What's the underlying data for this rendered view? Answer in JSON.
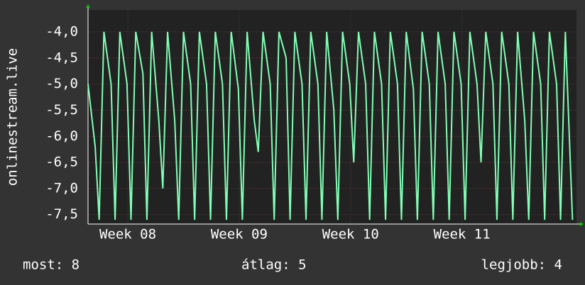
{
  "chart_data": {
    "type": "line",
    "ylabel": "onlinestream.live",
    "x": [
      0,
      0.45,
      0.7,
      1,
      1.45,
      1.7,
      2,
      2.45,
      2.7,
      3,
      3.45,
      3.7,
      4,
      4.45,
      4.7,
      5,
      5.45,
      5.7,
      6,
      6.45,
      6.7,
      7,
      7.45,
      7.7,
      8,
      8.45,
      8.7,
      9,
      9.45,
      9.7,
      10,
      10.45,
      10.7,
      11,
      11.45,
      11.7,
      12,
      12.45,
      12.7,
      13,
      13.45,
      13.7,
      14,
      14.45,
      14.7,
      15,
      15.45,
      15.7,
      16,
      16.45,
      16.7,
      17,
      17.45,
      17.7,
      18,
      18.45,
      18.7,
      19,
      19.45,
      19.7,
      20,
      20.45,
      20.7,
      21,
      21.45,
      21.7,
      22,
      22.45,
      22.7,
      23,
      23.45,
      23.7,
      24,
      24.45,
      24.7,
      25,
      25.45,
      25.7,
      26,
      26.45,
      26.7,
      27,
      27.45,
      27.7,
      28,
      28.45,
      28.7,
      29,
      29.45,
      29.7,
      30,
      30.45
    ],
    "series": [
      {
        "name": "onlinestream.live",
        "color": "#80ffb4",
        "values": [
          -5.0,
          -6.2,
          -7.6,
          -4.0,
          -5.0,
          -7.6,
          -4.0,
          -5.0,
          -7.6,
          -4.0,
          -4.8,
          -7.6,
          -4.0,
          -5.7,
          -7.0,
          -4.0,
          -5.7,
          -7.6,
          -4.0,
          -5.0,
          -7.6,
          -4.0,
          -5.0,
          -7.6,
          -4.0,
          -5.0,
          -7.6,
          -4.0,
          -5.1,
          -7.6,
          -4.0,
          -5.7,
          -6.3,
          -4.0,
          -5.0,
          -7.6,
          -4.0,
          -4.5,
          -7.6,
          -4.0,
          -5.0,
          -7.6,
          -4.0,
          -5.0,
          -7.6,
          -4.0,
          -5.5,
          -7.6,
          -4.0,
          -5.0,
          -6.5,
          -4.0,
          -5.0,
          -7.6,
          -4.0,
          -5.0,
          -7.6,
          -4.0,
          -5.0,
          -7.6,
          -4.0,
          -5.1,
          -7.6,
          -4.0,
          -5.0,
          -7.6,
          -4.0,
          -5.0,
          -7.6,
          -4.0,
          -5.0,
          -7.6,
          -4.0,
          -5.0,
          -6.5,
          -4.0,
          -5.0,
          -7.6,
          -4.0,
          -5.0,
          -7.6,
          -4.0,
          -5.7,
          -7.6,
          -4.0,
          -5.0,
          -7.6,
          -4.0,
          -5.0,
          -7.6,
          -4.0,
          -7.6
        ]
      }
    ],
    "xlim": [
      0,
      30.7
    ],
    "xticks": [
      {
        "value": 2.5,
        "label": "Week 08"
      },
      {
        "value": 9.5,
        "label": "Week 09"
      },
      {
        "value": 16.5,
        "label": "Week 10"
      },
      {
        "value": 23.5,
        "label": "Week 11"
      }
    ],
    "ylim": [
      -7.68,
      -3.58
    ],
    "yticks": [
      {
        "value": -4.0,
        "label": "-4,0"
      },
      {
        "value": -4.5,
        "label": "-4,5"
      },
      {
        "value": -5.0,
        "label": "-5,0"
      },
      {
        "value": -5.5,
        "label": "-5,5"
      },
      {
        "value": -6.0,
        "label": "-6,0"
      },
      {
        "value": -6.5,
        "label": "-6,5"
      },
      {
        "value": -7.0,
        "label": "-7,0"
      },
      {
        "value": -7.5,
        "label": "-7,5"
      }
    ],
    "grid": true
  },
  "footer": {
    "current": "most: 8",
    "average": "átlag: 5",
    "best": "legjobb: 4"
  }
}
